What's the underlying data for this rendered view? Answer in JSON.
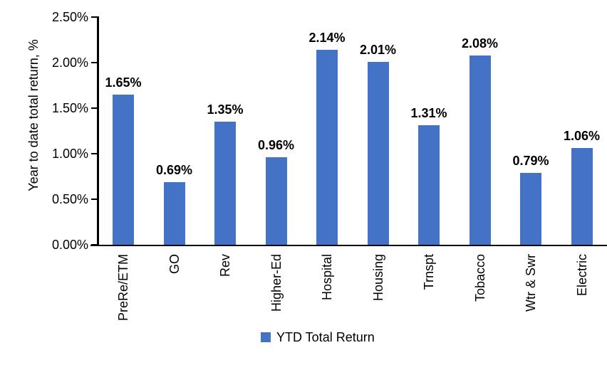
{
  "chart_data": {
    "type": "bar",
    "title": "",
    "categories": [
      "PreRe/ETM",
      "GO",
      "Rev",
      "Higher-Ed",
      "Hospital",
      "Housing",
      "Trnspt",
      "Tobacco",
      "Wtr & Swr",
      "Electric"
    ],
    "series": [
      {
        "name": "YTD Total Return",
        "values": [
          1.65,
          0.69,
          1.35,
          0.96,
          2.14,
          2.01,
          1.31,
          2.08,
          0.79,
          1.06
        ],
        "data_labels": [
          "1.65%",
          "0.69%",
          "1.35%",
          "0.96%",
          "2.14%",
          "2.01%",
          "1.31%",
          "2.08%",
          "0.79%",
          "1.06%"
        ],
        "color": "#4472C4"
      }
    ],
    "xlabel": "",
    "ylabel": "Year to date total return, %",
    "ylim": [
      0,
      2.5
    ],
    "ytick_step": 0.5,
    "ytick_labels": [
      "0.00%",
      "0.50%",
      "1.00%",
      "1.50%",
      "2.00%",
      "2.50%"
    ],
    "grid": false,
    "legend_position": "bottom",
    "legend": [
      {
        "name": "YTD Total Return",
        "color": "#4472C4"
      }
    ],
    "axis_color": "#000000",
    "text_color": "#000000",
    "background_color": "#FFFFFF"
  }
}
